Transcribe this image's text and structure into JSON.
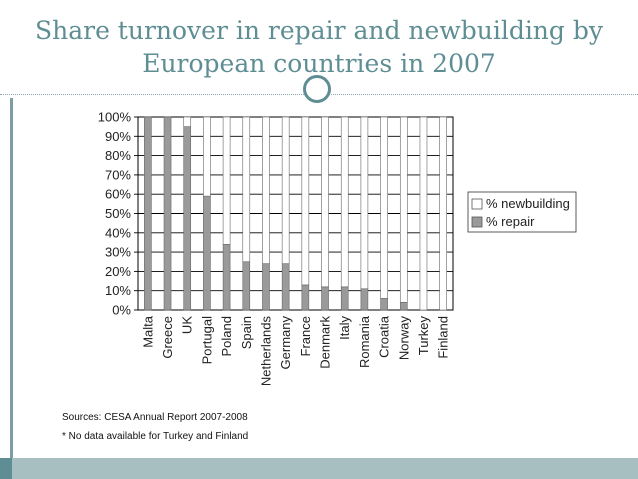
{
  "slide": {
    "title_line1": "Share turnover in repair and newbuilding by",
    "title_line2": "European countries in 2007"
  },
  "colors": {
    "title": "#5e8e93",
    "repair": "#9a9a9a",
    "newbuilding": "#ffffff",
    "bar_outline": "#666666",
    "grid": "#000000"
  },
  "chart_data": {
    "type": "bar",
    "stacked": true,
    "categories": [
      "Malta",
      "Greece",
      "UK",
      "Portugal",
      "Poland",
      "Spain",
      "Netherlands",
      "Germany",
      "France",
      "Denmark",
      "Italy",
      "Romania",
      "Croatia",
      "Norway",
      "Turkey",
      "Finland"
    ],
    "series": [
      {
        "name": "% repair",
        "values": [
          100,
          100,
          95,
          59,
          34,
          25,
          24,
          24,
          13,
          12,
          12,
          11,
          6,
          4,
          0,
          0
        ]
      },
      {
        "name": "% newbuilding",
        "values": [
          0,
          0,
          5,
          41,
          66,
          75,
          76,
          76,
          87,
          88,
          88,
          89,
          94,
          96,
          100,
          100
        ]
      }
    ],
    "yticks": [
      "0%",
      "10%",
      "20%",
      "30%",
      "40%",
      "50%",
      "60%",
      "70%",
      "80%",
      "90%",
      "100%"
    ],
    "ylim": [
      0,
      100
    ],
    "legend": [
      "% newbuilding",
      "% repair"
    ],
    "legend_position": "right",
    "grid": true
  },
  "notes": {
    "source": "Sources: CESA Annual Report 2007-2008",
    "footnote": "* No data available for Turkey and Finland"
  }
}
